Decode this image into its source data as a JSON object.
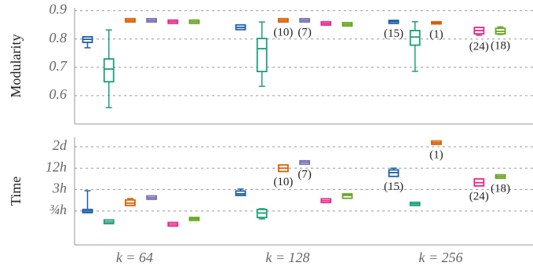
{
  "chart_data": [
    {
      "type": "box",
      "ylabel": "Modularity",
      "ylim": [
        0.5,
        0.91
      ],
      "yticks": [
        0.6,
        0.7,
        0.8,
        0.9
      ],
      "grid": true,
      "series": [
        {
          "color": "#1d5fa3",
          "values": [
            {
              "low": 0.769,
              "q1": 0.791,
              "median": 0.799,
              "q3": 0.805,
              "high": 0.808
            },
            {
              "low": 0.836,
              "q1": 0.836,
              "median": 0.841,
              "q3": 0.847,
              "high": 0.847
            },
            {
              "low": 0.858,
              "q1": 0.858,
              "median": 0.861,
              "q3": 0.863,
              "high": 0.863
            }
          ],
          "notes": [
            null,
            null,
            "(15)"
          ]
        },
        {
          "color": "#1b9e77",
          "values": [
            {
              "low": 0.558,
              "q1": 0.652,
              "median": 0.694,
              "q3": 0.727,
              "high": 0.832
            },
            {
              "low": 0.633,
              "q1": 0.688,
              "median": 0.766,
              "q3": 0.799,
              "high": 0.86
            },
            {
              "low": 0.686,
              "q1": 0.781,
              "median": 0.807,
              "q3": 0.827,
              "high": 0.861
            }
          ],
          "notes": [
            null,
            null,
            null
          ]
        },
        {
          "color": "#d95f02",
          "values": [
            {
              "low": 0.863,
              "q1": 0.863,
              "median": 0.866,
              "q3": 0.869,
              "high": 0.869
            },
            {
              "low": 0.863,
              "q1": 0.863,
              "median": 0.866,
              "q3": 0.869,
              "high": 0.869
            },
            {
              "low": 0.856,
              "q1": 0.856,
              "median": 0.857,
              "q3": 0.858,
              "high": 0.858
            }
          ],
          "notes": [
            null,
            "(10)",
            "(1)"
          ]
        },
        {
          "color": "#7570b3",
          "values": [
            {
              "low": 0.863,
              "q1": 0.863,
              "median": 0.866,
              "q3": 0.869,
              "high": 0.869
            },
            {
              "low": 0.863,
              "q1": 0.863,
              "median": 0.866,
              "q3": 0.869,
              "high": 0.869
            },
            null
          ],
          "notes": [
            null,
            "(7)",
            null
          ]
        },
        {
          "color": "#e7298a",
          "values": [
            {
              "low": 0.858,
              "q1": 0.858,
              "median": 0.861,
              "q3": 0.864,
              "high": 0.864
            },
            {
              "low": 0.852,
              "q1": 0.852,
              "median": 0.855,
              "q3": 0.858,
              "high": 0.858
            },
            {
              "low": 0.813,
              "q1": 0.821,
              "median": 0.83,
              "q3": 0.838,
              "high": 0.841
            }
          ],
          "notes": [
            null,
            null,
            "(24)"
          ]
        },
        {
          "color": "#66a61e",
          "values": [
            {
              "low": 0.858,
              "q1": 0.858,
              "median": 0.861,
              "q3": 0.864,
              "high": 0.864
            },
            {
              "low": 0.849,
              "q1": 0.849,
              "median": 0.852,
              "q3": 0.855,
              "high": 0.855
            },
            {
              "low": 0.816,
              "q1": 0.821,
              "median": 0.827,
              "q3": 0.835,
              "high": 0.843
            }
          ],
          "notes": [
            null,
            null,
            "(18)"
          ]
        }
      ]
    },
    {
      "type": "box",
      "ylabel": "Time",
      "yscale": "log",
      "ylim": [
        0.084,
        88
      ],
      "grid": true,
      "yticks": [
        {
          "value": 0.75,
          "label": "¾h"
        },
        {
          "value": 3,
          "label": "3h"
        },
        {
          "value": 12,
          "label": "12h"
        },
        {
          "value": 48,
          "label": "2d"
        }
      ],
      "categories": [
        "k = 64",
        "k = 128",
        "k = 256"
      ],
      "series": [
        {
          "color": "#1d5fa3",
          "values": [
            {
              "low": 0.71,
              "q1": 0.71,
              "median": 0.75,
              "q3": 0.79,
              "high": 2.79
            },
            {
              "low": 2.16,
              "q1": 2.16,
              "median": 2.29,
              "q3": 2.6,
              "high": 3.1
            },
            {
              "low": 7.4,
              "q1": 7.4,
              "median": 9.0,
              "q3": 10.2,
              "high": 12.0
            }
          ],
          "notes": [
            null,
            null,
            "(15)"
          ]
        },
        {
          "color": "#1b9e77",
          "values": [
            {
              "low": 0.35,
              "q1": 0.35,
              "median": 0.37,
              "q3": 0.4,
              "high": 0.4
            },
            {
              "low": 0.45,
              "q1": 0.52,
              "median": 0.66,
              "q3": 0.79,
              "high": 0.87
            },
            {
              "low": 1.13,
              "q1": 1.13,
              "median": 1.19,
              "q3": 1.25,
              "high": 1.25
            }
          ],
          "notes": [
            null,
            null,
            null
          ]
        },
        {
          "color": "#d95f02",
          "values": [
            {
              "low": 1.08,
              "q1": 1.13,
              "median": 1.25,
              "q3": 1.46,
              "high": 1.69
            },
            {
              "low": 10.2,
              "q1": 10.2,
              "median": 12.0,
              "q3": 14.0,
              "high": 14.7
            },
            {
              "low": 59,
              "q1": 59,
              "median": 62,
              "q3": 66,
              "high": 66
            }
          ],
          "notes": [
            null,
            "(10)",
            "(1)"
          ]
        },
        {
          "color": "#7570b3",
          "values": [
            {
              "low": 1.69,
              "q1": 1.69,
              "median": 1.78,
              "q3": 1.9,
              "high": 1.9
            },
            {
              "low": 16.3,
              "q1": 16.3,
              "median": 17.5,
              "q3": 18.4,
              "high": 18.4
            },
            null
          ],
          "notes": [
            null,
            "(7)",
            null
          ]
        },
        {
          "color": "#e7298a",
          "values": [
            {
              "low": 0.3,
              "q1": 0.3,
              "median": 0.32,
              "q3": 0.34,
              "high": 0.34
            },
            {
              "low": 1.37,
              "q1": 1.37,
              "median": 1.46,
              "q3": 1.57,
              "high": 1.57
            },
            {
              "low": 4.0,
              "q1": 4.0,
              "median": 4.7,
              "q3": 5.7,
              "high": 6.0
            }
          ],
          "notes": [
            null,
            null,
            "(24)"
          ]
        },
        {
          "color": "#66a61e",
          "values": [
            {
              "low": 0.43,
              "q1": 0.43,
              "median": 0.45,
              "q3": 0.47,
              "high": 0.47
            },
            {
              "low": 1.8,
              "q1": 1.8,
              "median": 2.07,
              "q3": 2.16,
              "high": 2.16
            },
            {
              "low": 6.6,
              "q1": 6.6,
              "median": 7.0,
              "q3": 7.4,
              "high": 7.4
            }
          ],
          "notes": [
            null,
            null,
            "(18)"
          ]
        }
      ]
    }
  ]
}
